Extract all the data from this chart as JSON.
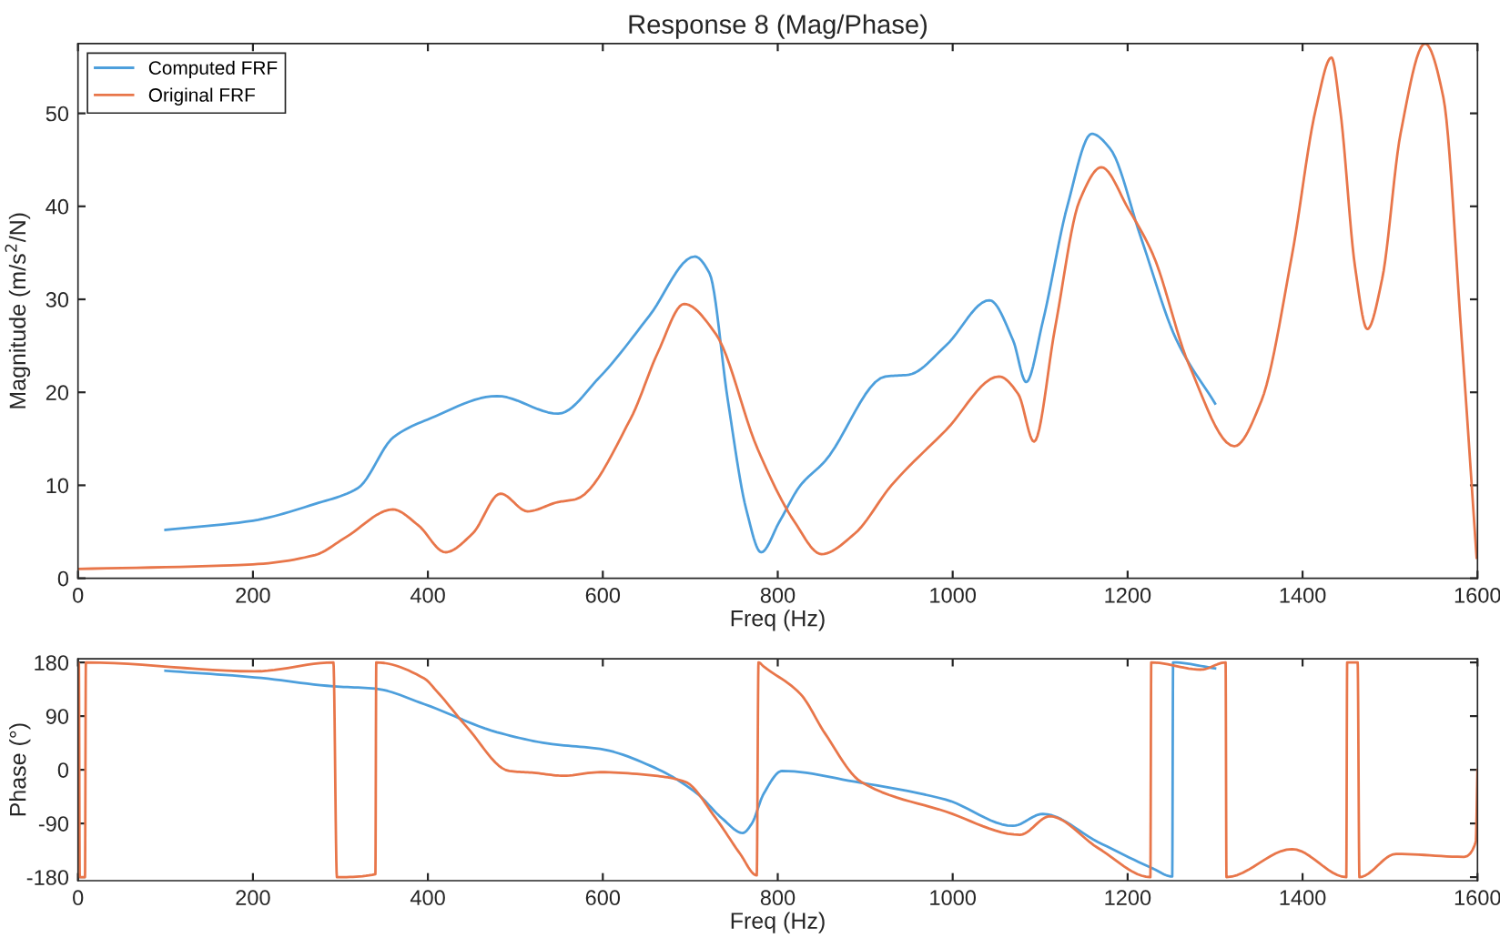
{
  "chart_data": [
    {
      "type": "line",
      "title": "Response 8 (Mag/Phase)",
      "xlabel": "Freq (Hz)",
      "ylabel": "Magnitude (m/s$^{2}$/N)",
      "xlim": [
        0,
        1600
      ],
      "xticks": [
        0,
        200,
        400,
        600,
        800,
        1000,
        1200,
        1400,
        1600
      ],
      "ylim": [
        0,
        57.5
      ],
      "yticks": [
        0,
        10,
        20,
        30,
        40,
        50
      ],
      "grid": false,
      "legend": "top left",
      "series": [
        {
          "name": "Computed FRF",
          "color": "#4d9fdc",
          "x": [
            100,
            200,
            271,
            320,
            361,
            403,
            479,
            549,
            597,
            653,
            705,
            722,
            743,
            764,
            781,
            802,
            826,
            854,
            923,
            950,
            992,
            1042,
            1069,
            1084,
            1103,
            1131,
            1159,
            1180,
            1215,
            1256,
            1300
          ],
          "values": [
            5.2,
            6.2,
            8.0,
            9.7,
            15.2,
            17.2,
            19.6,
            17.7,
            21.7,
            28.2,
            34.6,
            32.8,
            19.1,
            7.4,
            2.8,
            6.1,
            10.0,
            12.6,
            21.7,
            21.9,
            25.0,
            29.9,
            25.6,
            21.1,
            27.6,
            40.0,
            47.8,
            46.2,
            36.7,
            25.6,
            18.8
          ]
        },
        {
          "name": "Original FRF",
          "color": "#e8764a",
          "x": [
            0,
            200,
            271,
            306,
            360,
            389,
            420,
            451,
            483,
            514,
            549,
            569,
            632,
            663,
            693,
            729,
            777,
            819,
            850,
            888,
            930,
            992,
            1053,
            1075,
            1093,
            1117,
            1145,
            1170,
            1201,
            1229,
            1270,
            1322,
            1353,
            1388,
            1415,
            1433,
            1443,
            1460,
            1474,
            1491,
            1512,
            1540,
            1561,
            1582,
            1599
          ],
          "values": [
            1.0,
            1.5,
            2.5,
            4.4,
            7.4,
            5.7,
            2.8,
            4.8,
            9.1,
            7.2,
            8.2,
            8.5,
            17.2,
            24.3,
            29.5,
            26.3,
            13.9,
            6.1,
            2.6,
            4.8,
            10.0,
            15.9,
            21.7,
            19.8,
            14.7,
            26.9,
            40.6,
            44.2,
            39.7,
            34.8,
            23.0,
            14.2,
            19.1,
            34.8,
            50.4,
            56.0,
            50.4,
            33.5,
            26.8,
            32.2,
            47.8,
            57.5,
            51.7,
            25.6,
            2.2
          ]
        }
      ]
    },
    {
      "type": "line",
      "xlabel": "Freq (Hz)",
      "ylabel": "Phase (°)",
      "xlim": [
        0,
        1600
      ],
      "xticks": [
        0,
        200,
        400,
        600,
        800,
        1000,
        1200,
        1400,
        1600
      ],
      "ylim": [
        -186,
        186
      ],
      "yticks": [
        180,
        90,
        0,
        {
          "value": -90,
          "label": "-90"
        },
        {
          "value": -180,
          "label": "-180"
        }
      ],
      "grid": false,
      "series": [
        {
          "color": "#4d9fdc",
          "x": [
            100,
            202,
            292,
            340,
            396,
            479,
            542,
            597,
            660,
            708,
            736,
            760,
            770,
            784,
            805,
            888,
            992,
            1069,
            1103,
            1166,
            1228,
            1251,
            1252,
            1300
          ],
          "values": [
            166,
            155,
            140,
            136,
            110,
            63,
            43,
            35,
            3,
            -40,
            -81,
            -106,
            -91,
            -40,
            -2,
            -20,
            -50,
            -94,
            -74,
            -121,
            -165,
            -179,
            180,
            170
          ]
        },
        {
          "color": "#e8764a",
          "x": [
            0,
            1,
            2,
            8,
            9,
            202,
            292,
            296,
            340,
            341,
            396,
            410,
            445,
            493,
            521,
            555,
            597,
            660,
            694,
            729,
            757,
            776,
            778,
            784,
            826,
            854,
            895,
            992,
            1077,
            1111,
            1166,
            1226,
            1227,
            1284,
            1312,
            1313,
            1388,
            1450,
            1451,
            1463,
            1465,
            1507,
            1584,
            1598,
            1600
          ],
          "values": [
            180,
            178,
            -180,
            -180,
            180,
            165,
            180,
            -180,
            -175,
            180,
            153,
            132,
            71,
            -2,
            -5,
            -10,
            -4,
            -10,
            -20,
            -81,
            -141,
            -177,
            180,
            173,
            127,
            61,
            -20,
            -70,
            -109,
            -78,
            -131,
            -180,
            180,
            168,
            180,
            -180,
            -133,
            -180,
            180,
            180,
            -180,
            -141,
            -146,
            -121,
            0
          ]
        }
      ]
    }
  ]
}
